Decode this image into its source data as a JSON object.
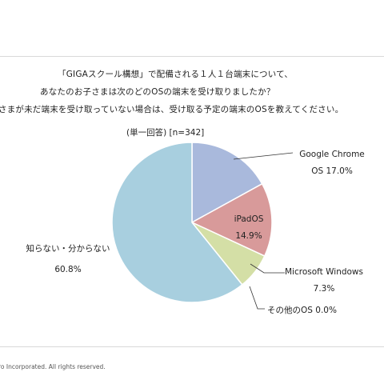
{
  "header": {
    "title_lines": [
      "「GIGAスクール構想」で配備される１人１台端末について、",
      "あなたのお子さまは次のどのOSの端末を受け取りましたか？",
      "さまが未だ端末を受け取っていない場合は、受け取る予定の端末のOSを教えてください。"
    ],
    "subtitle": "(単一回答) [n=342]"
  },
  "footer": {
    "copyright": "ro Incorporated. All rights reserved."
  },
  "chart_data": {
    "type": "pie",
    "start_angle_deg": 0,
    "direction": "clockwise",
    "slices": [
      {
        "label": "Google Chrome OS",
        "label_lines": [
          "Google Chrome",
          "OS 17.0%"
        ],
        "value": 17.0,
        "value_label": "17.0%",
        "color": "#a9b9dc"
      },
      {
        "label": "iPadOS",
        "label_lines": [
          "iPadOS",
          "14.9%"
        ],
        "value": 14.9,
        "value_label": "14.9%",
        "color": "#d89a9a"
      },
      {
        "label": "Microsoft Windows",
        "label_lines": [
          "Microsoft Windows",
          "7.3%"
        ],
        "value": 7.3,
        "value_label": "7.3%",
        "color": "#d4dfa6"
      },
      {
        "label": "その他のOS",
        "label_lines": [
          "その他のOS 0.0%"
        ],
        "value": 0.0,
        "value_label": "0.0%",
        "color": "#c9a9d3"
      },
      {
        "label": "知らない・分からない",
        "label_lines": [
          "知らない・分からない",
          "60.8%"
        ],
        "value": 60.8,
        "value_label": "60.8%",
        "color": "#a8cfdf"
      }
    ]
  }
}
